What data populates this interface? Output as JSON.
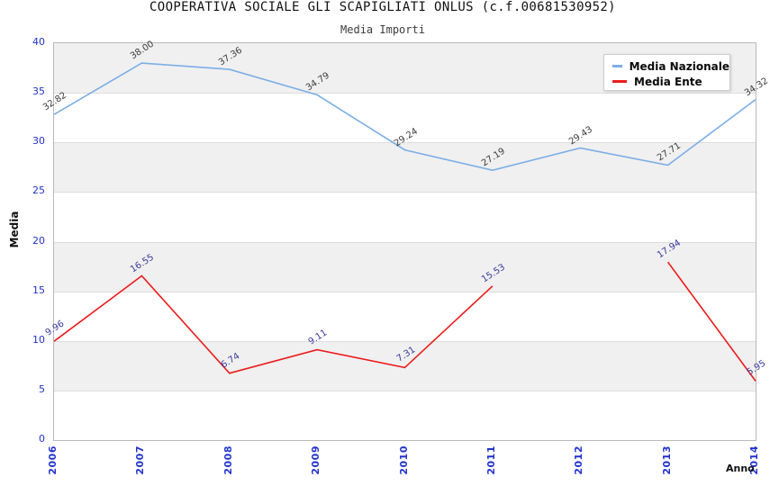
{
  "chart_data": {
    "type": "line",
    "title": "COOPERATIVA SOCIALE GLI SCAPIGLIATI ONLUS (c.f.00681530952)",
    "subtitle": "Media Importi",
    "xlabel": "Anno",
    "ylabel": "Media",
    "categories": [
      "2006",
      "2007",
      "2008",
      "2009",
      "2010",
      "2011",
      "2012",
      "2013",
      "2014"
    ],
    "yticks": [
      0,
      5,
      10,
      15,
      20,
      25,
      30,
      35,
      40
    ],
    "ylim": [
      0,
      40
    ],
    "grid": "horizontal-bands",
    "legend_position": "top-right",
    "series": [
      {
        "name": "Media Nazionale",
        "color": "#7caee6",
        "label_color": "#3c3c3c",
        "values": [
          32.82,
          38.0,
          37.36,
          34.79,
          29.24,
          27.19,
          29.43,
          27.71,
          34.32
        ]
      },
      {
        "name": "Media Ente",
        "color": "#ec1c1c",
        "label_color": "#3a3a9e",
        "values": [
          9.96,
          16.55,
          6.74,
          9.11,
          7.31,
          15.53,
          null,
          17.94,
          5.95
        ]
      }
    ],
    "colors": {
      "tick_text": "#2233cc",
      "band_gray": "#f0f0f0",
      "band_white": "#ffffff",
      "plot_border": "#b9b9b9",
      "gridline": "#dedede"
    }
  }
}
